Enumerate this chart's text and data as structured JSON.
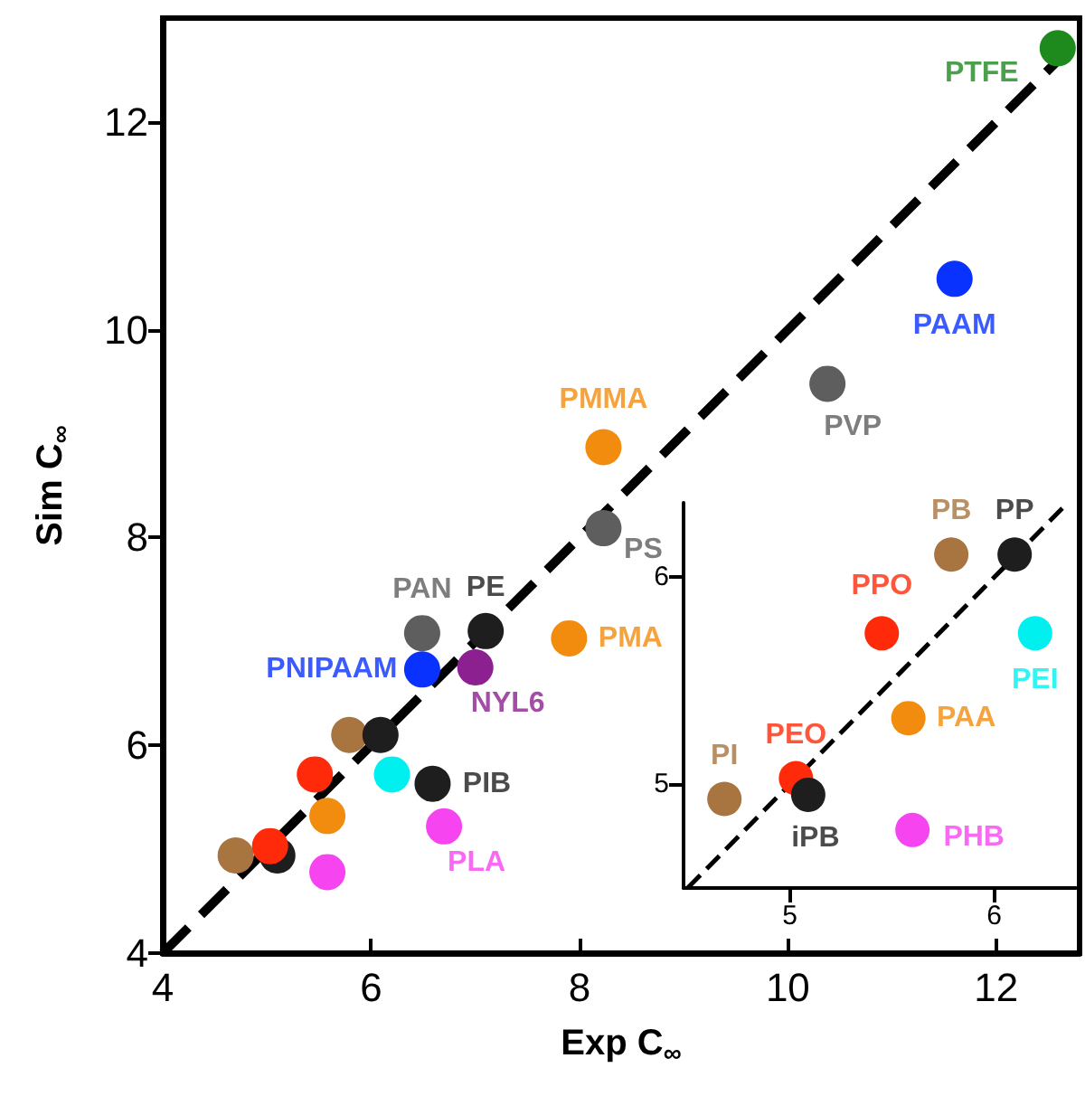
{
  "chart_data": [
    {
      "type": "scatter",
      "xlabel": "Exp C$_{∞}$",
      "ylabel": "Sim C$_{∞}$",
      "xlim": [
        4,
        12.8
      ],
      "ylim": [
        4,
        13
      ],
      "xticks": [
        4,
        6,
        8,
        10,
        12
      ],
      "yticks": [
        4,
        6,
        8,
        10,
        12
      ],
      "grid": false,
      "marker": "circle",
      "series": [
        {
          "type": "line",
          "marker": "none",
          "color": "#000000",
          "line_style": "dashed",
          "x": [
            4,
            12.8
          ],
          "values": [
            4,
            12.8
          ]
        },
        {
          "x": [
            12.59,
            11.6,
            10.38,
            8.23,
            8.23,
            7.9,
            6.49,
            7.1,
            6.49,
            7.0,
            5.79,
            6.09,
            5.46,
            6.2,
            6.59,
            5.58,
            6.7,
            4.7,
            5.1,
            5.03,
            5.58
          ],
          "values": [
            12.71,
            10.49,
            9.48,
            8.87,
            8.09,
            7.03,
            7.08,
            7.1,
            6.73,
            6.75,
            6.1,
            6.1,
            5.72,
            5.72,
            5.63,
            5.32,
            5.22,
            4.94,
            4.94,
            5.03,
            4.78
          ],
          "colors": [
            "#1e8a1e",
            "#0a32ff",
            "#5e5e5e",
            "#f28c0f",
            "#5e5e5e",
            "#f28c0f",
            "#5e5e5e",
            "#1e1e1e",
            "#0a32ff",
            "#8c2090",
            "#a8743f",
            "#1e1e1e",
            "#ff2a0a",
            "#00f0f0",
            "#1e1e1e",
            "#f28c0f",
            "#f645f0",
            "#a8743f",
            "#1e1e1e",
            "#ff2a0a",
            "#f645f0"
          ]
        }
      ],
      "annotations": [
        {
          "text": "PTFE",
          "x": 12.59,
          "y": 12.71
        },
        {
          "text": "PAAM",
          "x": 11.6,
          "y": 10.49
        },
        {
          "text": "PVP",
          "x": 10.38,
          "y": 9.48
        },
        {
          "text": "PMMA",
          "x": 8.23,
          "y": 8.87
        },
        {
          "text": "PS",
          "x": 8.23,
          "y": 8.09
        },
        {
          "text": "PMA",
          "x": 7.9,
          "y": 7.03
        },
        {
          "text": "PAN",
          "x": 6.49,
          "y": 7.08
        },
        {
          "text": "PE",
          "x": 7.1,
          "y": 7.1
        },
        {
          "text": "PNIPAAM",
          "x": 6.49,
          "y": 6.73
        },
        {
          "text": "NYL6",
          "x": 7.0,
          "y": 6.75
        },
        {
          "text": "PIB",
          "x": 6.59,
          "y": 5.63
        },
        {
          "text": "PLA",
          "x": 6.7,
          "y": 5.22
        }
      ]
    },
    {
      "type": "scatter",
      "xlim": [
        4.48,
        6.4
      ],
      "ylim": [
        4.5,
        6.36
      ],
      "xticks": [
        5,
        6
      ],
      "yticks": [
        5,
        6
      ],
      "grid": false,
      "marker": "circle",
      "series": [
        {
          "type": "line",
          "marker": "none",
          "color": "#000000",
          "line_style": "dashed",
          "x": [
            4.5,
            6.36
          ],
          "values": [
            4.5,
            6.36
          ]
        },
        {
          "x": [
            5.79,
            6.1,
            5.45,
            6.2,
            5.58,
            5.03,
            4.68,
            5.09,
            5.6
          ],
          "values": [
            6.11,
            6.11,
            5.73,
            5.73,
            5.32,
            5.03,
            4.93,
            4.95,
            4.78
          ],
          "colors": [
            "#a8743f",
            "#1e1e1e",
            "#ff2a0a",
            "#00f0f0",
            "#f28c0f",
            "#ff2a0a",
            "#a8743f",
            "#1e1e1e",
            "#f645f0"
          ]
        }
      ],
      "annotations": [
        {
          "text": "PB",
          "x": 5.79,
          "y": 6.11
        },
        {
          "text": "PP",
          "x": 6.1,
          "y": 6.11
        },
        {
          "text": "PPO",
          "x": 5.45,
          "y": 5.73
        },
        {
          "text": "PEI",
          "x": 6.2,
          "y": 5.73
        },
        {
          "text": "PAA",
          "x": 5.58,
          "y": 5.32
        },
        {
          "text": "PEO",
          "x": 5.03,
          "y": 5.03
        },
        {
          "text": "PI",
          "x": 4.68,
          "y": 4.93
        },
        {
          "text": "iPB",
          "x": 5.09,
          "y": 4.95
        },
        {
          "text": "PHB",
          "x": 5.6,
          "y": 4.78
        }
      ]
    }
  ]
}
